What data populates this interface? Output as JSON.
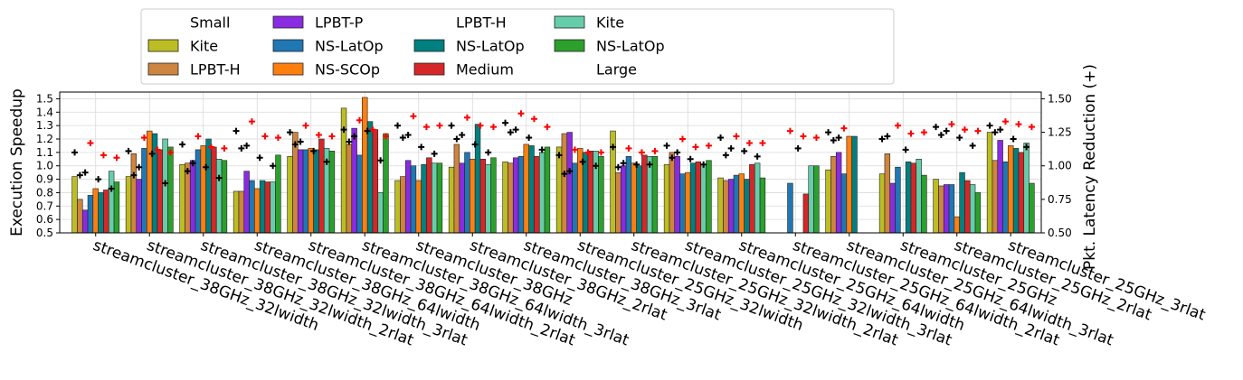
{
  "chart_data": {
    "type": "bar",
    "title": "",
    "xlabel": "",
    "ylabel": "Execution Speedup",
    "y2label": "Pkt. Latency Reduction (+)",
    "ylim": [
      0.5,
      1.55
    ],
    "y2lim": [
      0.5,
      1.55
    ],
    "yticks": [
      "0.5",
      "0.6",
      "0.7",
      "0.8",
      "0.9",
      "1.0",
      "1.1",
      "1.2",
      "1.3",
      "1.4",
      "1.5"
    ],
    "y2ticks": [
      "0.50",
      "0.75",
      "1.00",
      "1.25",
      "1.50"
    ],
    "grid": true,
    "legend": {
      "position": "top",
      "entries": [
        {
          "label": "Small",
          "color": null
        },
        {
          "label": "Kite",
          "color": "#bcbd22"
        },
        {
          "label": "LPBT-H",
          "color": "#cd853f"
        },
        {
          "label": "LPBT-P",
          "color": "#8a2be2"
        },
        {
          "label": "NS-LatOp",
          "color": "#1f77b4"
        },
        {
          "label": "NS-SCOp",
          "color": "#ff7f0e"
        },
        {
          "label": "LPBT-H",
          "color": null
        },
        {
          "label": "NS-LatOp",
          "color": "#008080"
        },
        {
          "label": "Medium",
          "color": "#d62728"
        },
        {
          "label": "Kite",
          "color": "#66cdaa"
        },
        {
          "label": "NS-LatOp",
          "color": "#2ca02c"
        },
        {
          "label": "Large",
          "color": null
        }
      ]
    },
    "series_colors": [
      "#bcbd22",
      "#cd853f",
      "#8a2be2",
      "#1f77b4",
      "#ff7f0e",
      "#008080",
      "#d62728",
      "#66cdaa",
      "#2ca02c"
    ],
    "categories": [
      "streamcluster_38GHz_32lwidth",
      "streamcluster_38GHz_32lwidth_2rlat",
      "streamcluster_38GHz_32lwidth_3rlat",
      "streamcluster_38GHz_64lwidth",
      "streamcluster_38GHz_64lwidth_2rlat",
      "streamcluster_38GHz_64lwidth_3rlat",
      "streamcluster_38GHz",
      "streamcluster_38GHz_2rlat",
      "streamcluster_38GHz_3rlat",
      "streamcluster_25GHz_32lwidth",
      "streamcluster_25GHz_32lwidth_2rlat",
      "streamcluster_25GHz_32lwidth_3rlat",
      "streamcluster_25GHz_64lwidth",
      "streamcluster_25GHz_64lwidth_2rlat",
      "streamcluster_25GHz_64lwidth_3rlat",
      "streamcluster_25GHz",
      "streamcluster_25GHz_2rlat",
      "streamcluster_25GHz_3rlat"
    ],
    "groups": [
      {
        "bars": [
          0.92,
          0.75,
          0.67,
          0.78,
          0.83,
          0.8,
          0.82,
          0.96,
          0.88
        ],
        "black": [
          1.1,
          0.93,
          0.95,
          0.9,
          0.83
        ],
        "red": [
          1.17,
          1.08,
          1.06
        ]
      },
      {
        "bars": [
          0.92,
          1.09,
          0.9,
          1.13,
          1.26,
          1.24,
          1.12,
          1.2,
          1.14
        ],
        "black": [
          1.11,
          0.93,
          0.99,
          1.09,
          0.87
        ],
        "red": [
          1.21,
          1.12,
          1.1
        ]
      },
      {
        "bars": [
          1.01,
          1.02,
          1.04,
          1.12,
          1.15,
          1.2,
          1.14,
          1.05,
          1.04
        ],
        "black": [
          1.16,
          0.96,
          1.02,
          0.99,
          0.91
        ],
        "red": [
          1.22,
          1.14,
          1.13
        ]
      },
      {
        "bars": [
          0.81,
          0.81,
          0.96,
          0.89,
          0.83,
          0.89,
          0.88,
          0.88,
          1.08
        ],
        "black": [
          1.26,
          1.13,
          1.15,
          1.06,
          1.0
        ],
        "red": [
          1.33,
          1.22,
          1.21
        ]
      },
      {
        "bars": [
          1.07,
          1.25,
          1.12,
          1.12,
          1.13,
          1.12,
          1.2,
          1.13,
          1.11
        ],
        "black": [
          1.25,
          1.16,
          1.18,
          1.11,
          1.03
        ],
        "red": [
          1.3,
          1.23,
          1.22
        ]
      },
      {
        "bars": [
          1.43,
          1.16,
          1.28,
          1.08,
          1.51,
          1.33,
          1.27,
          0.8,
          1.24
        ],
        "black": [
          1.27,
          1.18,
          1.22,
          1.26,
          1.04
        ],
        "red": [
          1.34,
          1.27,
          1.22
        ]
      },
      {
        "bars": [
          0.89,
          0.92,
          1.04,
          1.0,
          0.89,
          1.01,
          1.06,
          1.02,
          1.02
        ],
        "black": [
          1.3,
          1.21,
          1.23,
          1.14,
          1.09
        ],
        "red": [
          1.37,
          1.29,
          1.3
        ]
      },
      {
        "bars": [
          0.99,
          1.16,
          1.02,
          1.1,
          1.05,
          1.31,
          1.05,
          1.01,
          1.06
        ],
        "black": [
          1.3,
          1.2,
          1.23,
          1.16,
          1.1
        ],
        "red": [
          1.36,
          1.3,
          1.29
        ]
      },
      {
        "bars": [
          1.03,
          1.02,
          1.06,
          1.07,
          1.16,
          1.15,
          1.07,
          1.1,
          1.14
        ],
        "black": [
          1.32,
          1.25,
          1.27,
          1.21,
          1.12
        ],
        "red": [
          1.39,
          1.35,
          1.29
        ]
      },
      {
        "bars": [
          1.14,
          1.24,
          1.25,
          1.02,
          1.13,
          1.1,
          1.11,
          1.11,
          1.07
        ],
        "black": [
          1.08,
          0.94,
          0.96,
          1.03,
          1.0
        ],
        "red": [
          1.12,
          1.1,
          1.1
        ]
      },
      {
        "bars": [
          1.26,
          0.95,
          1.0,
          1.07,
          1.02,
          1.0,
          1.08,
          1.07,
          1.07
        ],
        "black": [
          1.14,
          0.99,
          1.02,
          1.01,
          1.01
        ],
        "red": [
          1.13,
          1.1,
          1.11
        ]
      },
      {
        "bars": [
          1.01,
          1.1,
          1.07,
          0.94,
          0.95,
          1.02,
          1.03,
          1.01,
          1.04
        ],
        "black": [
          1.15,
          1.06,
          1.1,
          1.05,
          1.01
        ],
        "red": [
          1.2,
          1.14,
          1.15
        ]
      },
      {
        "bars": [
          0.91,
          0.89,
          0.9,
          0.93,
          0.94,
          0.9,
          1.01,
          1.02,
          0.91
        ],
        "black": [
          1.21,
          1.08,
          1.13,
          1.11,
          1.07
        ],
        "red": [
          1.22,
          1.17,
          1.17
        ]
      },
      {
        "bars": [
          null,
          null,
          null,
          0.87,
          null,
          null,
          0.79,
          1.0,
          1.0
        ],
        "black": [
          null,
          null,
          null,
          1.13,
          null
        ],
        "red": [
          1.26,
          1.22,
          1.21
        ]
      },
      {
        "bars": [
          0.97,
          1.07,
          1.1,
          0.94,
          1.22,
          1.22,
          null,
          null,
          null
        ],
        "black": [
          1.25,
          1.19,
          1.21,
          null,
          null
        ],
        "red": [
          1.28,
          null,
          null
        ]
      },
      {
        "bars": [
          0.94,
          1.09,
          0.87,
          0.99,
          null,
          1.03,
          1.02,
          1.05,
          0.93
        ],
        "black": [
          1.2,
          1.22,
          null,
          1.12,
          null
        ],
        "red": [
          1.3,
          1.24,
          1.25
        ]
      },
      {
        "bars": [
          0.9,
          0.85,
          0.86,
          0.86,
          0.62,
          0.95,
          0.89,
          0.86,
          0.8
        ],
        "black": [
          1.29,
          1.23,
          1.26,
          1.21,
          1.15
        ],
        "red": [
          1.31,
          1.27,
          1.26
        ]
      },
      {
        "bars": [
          1.25,
          1.04,
          1.19,
          1.03,
          1.15,
          1.13,
          1.1,
          1.17,
          0.87
        ],
        "black": [
          1.3,
          1.25,
          1.27,
          1.2,
          1.14
        ],
        "red": [
          1.33,
          1.31,
          1.29
        ]
      }
    ]
  }
}
